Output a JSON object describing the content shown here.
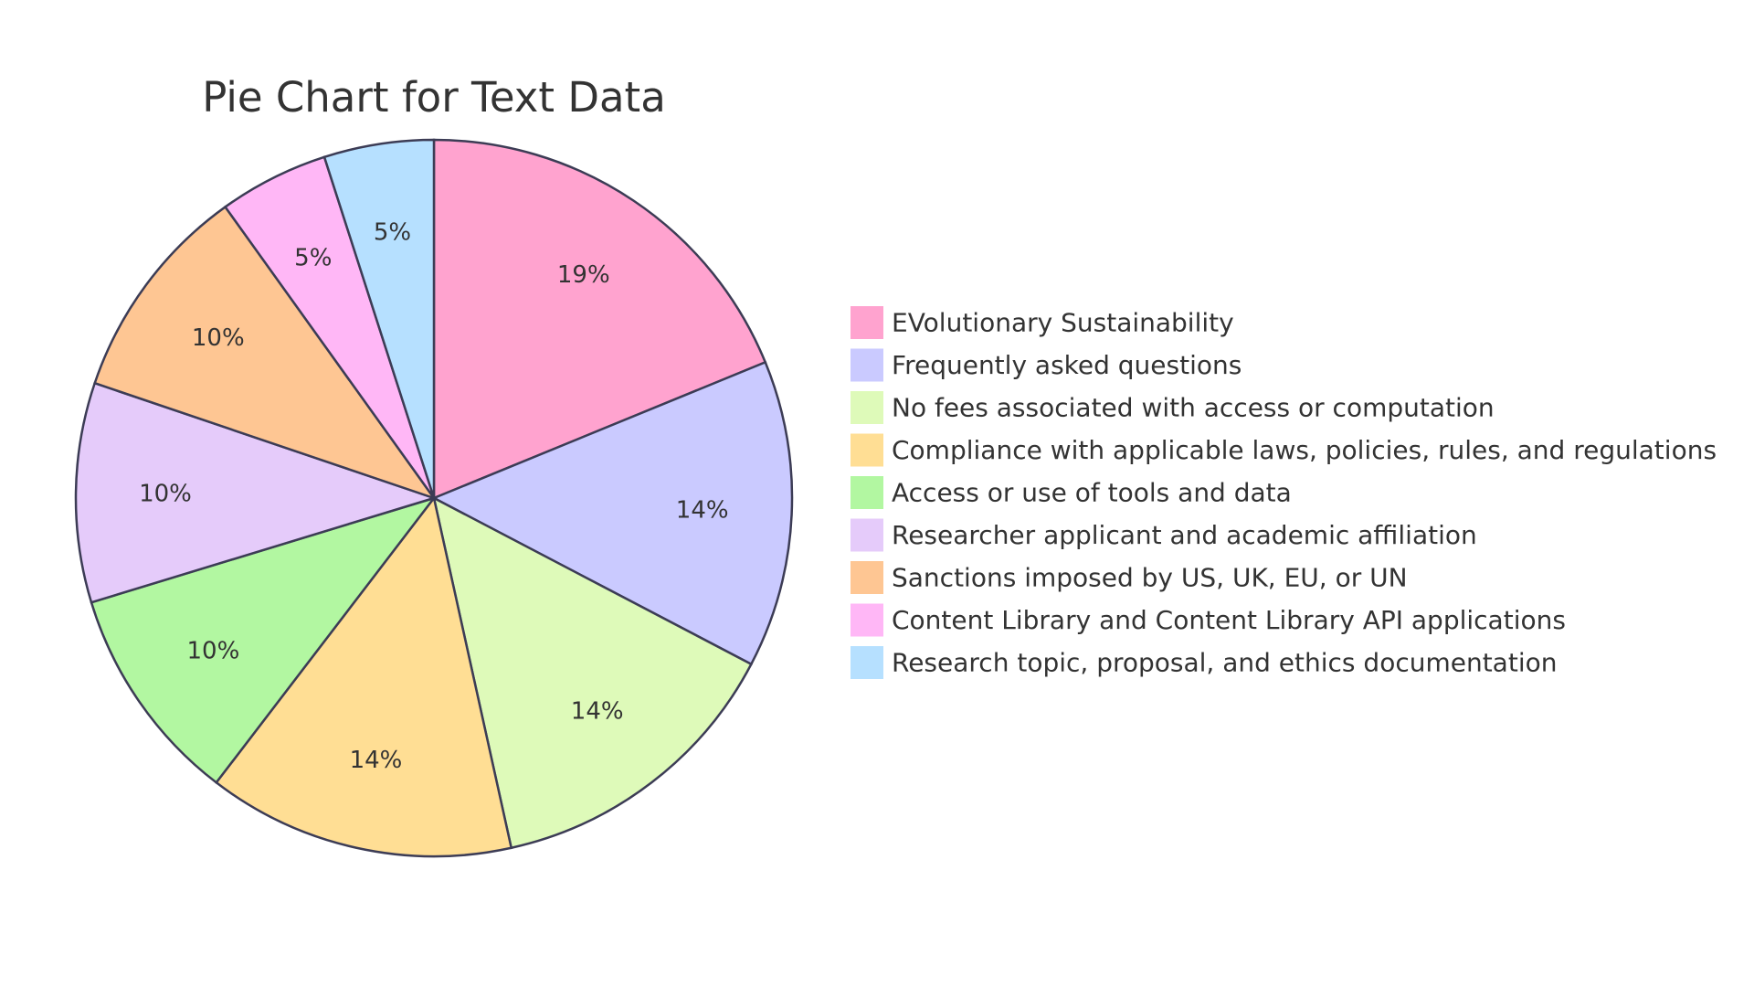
{
  "chart_data": {
    "type": "pie",
    "title": "Pie Chart for Text Data",
    "legend_position": "right",
    "slices": [
      {
        "label": "EVolutionary Sustainability",
        "value": 19,
        "display": "19%",
        "color": "#FFA3CF"
      },
      {
        "label": "Frequently asked questions",
        "value": 14,
        "display": "14%",
        "color": "#CACAFF"
      },
      {
        "label": "No fees associated with access or computation",
        "value": 14,
        "display": "14%",
        "color": "#DEFAB9"
      },
      {
        "label": "Compliance with applicable laws, policies, rules, and regulations",
        "value": 14,
        "display": "14%",
        "color": "#FFDE94"
      },
      {
        "label": "Access or use of tools and data",
        "value": 10,
        "display": "10%",
        "color": "#B2F7A1"
      },
      {
        "label": "Researcher applicant and academic affiliation",
        "value": 10,
        "display": "10%",
        "color": "#E5CBFA"
      },
      {
        "label": "Sanctions imposed by US, UK, EU, or UN",
        "value": 10,
        "display": "10%",
        "color": "#FEC693"
      },
      {
        "label": "Content Library and Content Library API applications",
        "value": 5,
        "display": "5%",
        "color": "#FFB7F6"
      },
      {
        "label": "Research topic, proposal, and ethics documentation",
        "value": 5,
        "display": "5%",
        "color": "#B6E0FF"
      }
    ]
  }
}
